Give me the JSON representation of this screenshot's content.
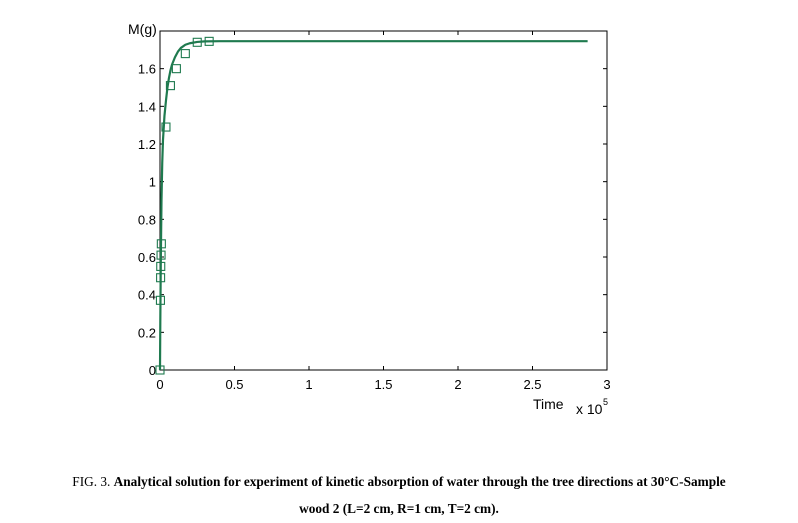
{
  "chart_data": {
    "type": "line",
    "title": "",
    "ylabel": "M(g)",
    "xlabel": "Time",
    "x_multiplier": "x 10",
    "x_multiplier_exp": "5",
    "xlim": [
      0,
      300000
    ],
    "ylim": [
      0,
      1.8
    ],
    "xticks": [
      0,
      50000,
      100000,
      150000,
      200000,
      250000,
      300000
    ],
    "xtick_labels": [
      "0",
      "0.5",
      "1",
      "1.5",
      "2",
      "2.5",
      "3"
    ],
    "yticks": [
      0,
      0.2,
      0.4,
      0.6,
      0.8,
      1.0,
      1.2,
      1.4,
      1.6
    ],
    "ytick_labels": [
      "0",
      "0.2",
      "0.4",
      "0.6",
      "0.8",
      "1",
      "1.2",
      "1.4",
      "1.6"
    ],
    "grid": false,
    "series": [
      {
        "kind": "line",
        "color": "#1f7a4f",
        "x": [
          0,
          200,
          500,
          1000,
          1500,
          2000,
          3000,
          4000,
          5000,
          6000,
          7000,
          8000,
          10000,
          12000,
          14000,
          17000,
          20000,
          25000,
          30000,
          40000,
          60000,
          100000,
          150000,
          200000,
          250000,
          287000
        ],
        "y": [
          0,
          0.25,
          0.55,
          0.9,
          1.1,
          1.22,
          1.35,
          1.43,
          1.5,
          1.55,
          1.59,
          1.62,
          1.66,
          1.69,
          1.71,
          1.727,
          1.735,
          1.742,
          1.745,
          1.746,
          1.746,
          1.746,
          1.746,
          1.746,
          1.746,
          1.746
        ]
      },
      {
        "kind": "scatter",
        "marker": "square",
        "color": "#1f7a4f",
        "x": [
          0,
          300,
          400,
          500,
          700,
          900,
          4000,
          7000,
          11000,
          17000,
          25000,
          33000
        ],
        "y": [
          0,
          0.37,
          0.49,
          0.55,
          0.61,
          0.67,
          1.29,
          1.51,
          1.6,
          1.68,
          1.74,
          1.745
        ]
      }
    ]
  },
  "caption": {
    "label": "FIG. 3.",
    "text_line1": "Analytical solution for experiment of kinetic absorption of water through the tree directions at 30°C-Sample",
    "text_line2": "wood 2 (L=2 cm, R=1 cm, T=2 cm)."
  }
}
